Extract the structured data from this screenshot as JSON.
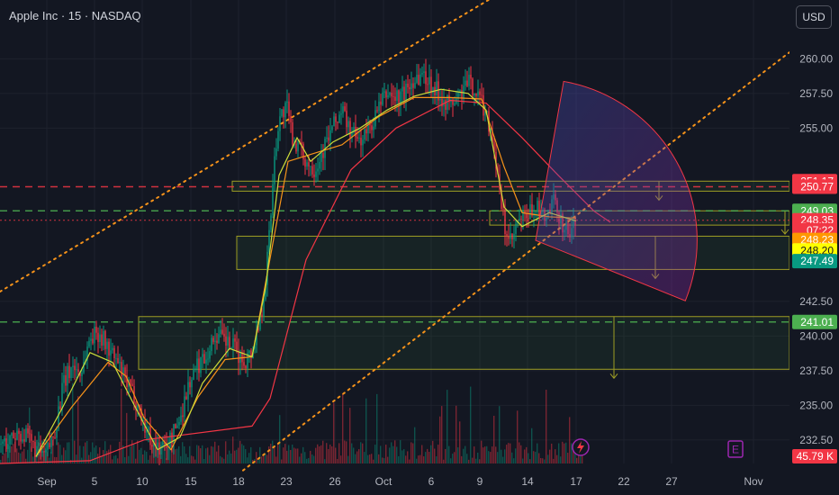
{
  "header": {
    "title": "Apple Inc · 15 · NASDAQ",
    "currency": "USD"
  },
  "chart_data": {
    "type": "candlestick",
    "ylim": [
      230.8,
      262.3
    ],
    "y_ticks": [
      "260.00",
      "257.50",
      "255.00",
      "242.50",
      "240.00",
      "237.50",
      "235.00",
      "232.50"
    ],
    "y_tick_values": [
      260.0,
      257.5,
      255.0,
      242.5,
      240.0,
      237.5,
      235.0,
      232.5
    ],
    "x_ticks": [
      "Sep",
      "5",
      "10",
      "15",
      "18",
      "23",
      "26",
      "Oct",
      "6",
      "9",
      "14",
      "17",
      "22",
      "27",
      "Nov"
    ],
    "price_path": [
      [
        0,
        232.2
      ],
      [
        10,
        232.4
      ],
      [
        20,
        233.1
      ],
      [
        30,
        232.6
      ],
      [
        40,
        231.8
      ],
      [
        50,
        231.3
      ],
      [
        60,
        232.9
      ],
      [
        70,
        236.4
      ],
      [
        80,
        237.9
      ],
      [
        90,
        237.3
      ],
      [
        100,
        239.9
      ],
      [
        110,
        240.3
      ],
      [
        120,
        239.1
      ],
      [
        130,
        238.1
      ],
      [
        140,
        236.6
      ],
      [
        150,
        235.6
      ],
      [
        160,
        233.6
      ],
      [
        170,
        232.3
      ],
      [
        180,
        231.8
      ],
      [
        190,
        232.6
      ],
      [
        200,
        234.1
      ],
      [
        210,
        236.6
      ],
      [
        220,
        237.9
      ],
      [
        230,
        238.8
      ],
      [
        240,
        240.1
      ],
      [
        250,
        239.6
      ],
      [
        260,
        239.1
      ],
      [
        270,
        238.1
      ],
      [
        280,
        238.9
      ],
      [
        290,
        241.6
      ],
      [
        295,
        244.1
      ],
      [
        300,
        248.1
      ],
      [
        305,
        253.1
      ],
      [
        310,
        255.6
      ],
      [
        318,
        256.6
      ],
      [
        325,
        254.3
      ],
      [
        332,
        253.6
      ],
      [
        340,
        252.6
      ],
      [
        350,
        252.1
      ],
      [
        360,
        253.6
      ],
      [
        370,
        255.1
      ],
      [
        380,
        256.3
      ],
      [
        390,
        254.6
      ],
      [
        400,
        254.1
      ],
      [
        410,
        254.9
      ],
      [
        420,
        256.3
      ],
      [
        430,
        257.6
      ],
      [
        440,
        257.1
      ],
      [
        450,
        257.6
      ],
      [
        460,
        258.6
      ],
      [
        470,
        258.9
      ],
      [
        480,
        258.1
      ],
      [
        490,
        257.3
      ],
      [
        500,
        256.6
      ],
      [
        510,
        257.3
      ],
      [
        520,
        258.3
      ],
      [
        530,
        257.6
      ],
      [
        540,
        256.1
      ],
      [
        548,
        254.1
      ],
      [
        555,
        250.1
      ],
      [
        562,
        247.4
      ],
      [
        568,
        246.6
      ],
      [
        575,
        248.1
      ],
      [
        585,
        248.6
      ],
      [
        595,
        249.4
      ],
      [
        605,
        248.3
      ],
      [
        615,
        249.6
      ],
      [
        625,
        248.1
      ],
      [
        633,
        247.4
      ],
      [
        640,
        248.4
      ]
    ],
    "moving_averages": [
      {
        "name": "",
        "color": "#f23645",
        "points": [
          [
            0,
            230.8
          ],
          [
            100,
            231.0
          ],
          [
            160,
            232.5
          ],
          [
            280,
            233.5
          ],
          [
            300,
            235.5
          ],
          [
            340,
            245.5
          ],
          [
            390,
            252.0
          ],
          [
            440,
            255.0
          ],
          [
            500,
            257.0
          ],
          [
            540,
            256.8
          ],
          [
            580,
            254.3
          ],
          [
            620,
            251.6
          ],
          [
            660,
            249.0
          ],
          [
            678,
            248.2
          ]
        ]
      },
      {
        "name": "",
        "color": "#f7931a",
        "points": [
          [
            40,
            231.3
          ],
          [
            80,
            234.9
          ],
          [
            120,
            238.1
          ],
          [
            140,
            237.1
          ],
          [
            160,
            234.1
          ],
          [
            190,
            231.8
          ],
          [
            220,
            235.6
          ],
          [
            250,
            238.3
          ],
          [
            280,
            238.5
          ],
          [
            300,
            245.6
          ],
          [
            320,
            252.6
          ],
          [
            345,
            253.1
          ],
          [
            380,
            253.8
          ],
          [
            420,
            255.8
          ],
          [
            460,
            257.2
          ],
          [
            500,
            257.2
          ],
          [
            535,
            257.1
          ],
          [
            560,
            252.2
          ],
          [
            580,
            248.9
          ],
          [
            610,
            248.6
          ],
          [
            640,
            248.5
          ]
        ]
      },
      {
        "name": "",
        "color": "#cddc39",
        "points": [
          [
            40,
            231.3
          ],
          [
            70,
            234.9
          ],
          [
            100,
            238.8
          ],
          [
            125,
            238.1
          ],
          [
            150,
            234.9
          ],
          [
            175,
            231.8
          ],
          [
            200,
            232.7
          ],
          [
            225,
            236.6
          ],
          [
            255,
            239.1
          ],
          [
            280,
            238.5
          ],
          [
            295,
            243.5
          ],
          [
            310,
            251.6
          ],
          [
            330,
            254.3
          ],
          [
            345,
            252.6
          ],
          [
            370,
            254.0
          ],
          [
            400,
            255.0
          ],
          [
            430,
            256.3
          ],
          [
            460,
            257.3
          ],
          [
            490,
            257.8
          ],
          [
            520,
            257.5
          ],
          [
            540,
            256.3
          ],
          [
            560,
            249.3
          ],
          [
            580,
            247.9
          ],
          [
            610,
            248.9
          ],
          [
            640,
            248.3
          ]
        ]
      }
    ],
    "trend_channel": {
      "color": "#f7931a",
      "lines": [
        {
          "from": [
            0,
            243.2
          ],
          "to": [
            575,
            265.5
          ]
        },
        {
          "from": [
            270,
            230.3
          ],
          "to": [
            932,
            263.2
          ]
        }
      ]
    },
    "horizontal_lines": [
      {
        "price": 250.77,
        "color": "#f23645",
        "style": "dashed"
      },
      {
        "price": 249.03,
        "color": "#4caf50",
        "style": "dashed"
      },
      {
        "price": 241.01,
        "color": "#4caf50",
        "style": "dashed"
      },
      {
        "price": 248.35,
        "color": "#f23645",
        "style": "dotted"
      }
    ],
    "zones": [
      {
        "x_start": 258,
        "x_end": 877,
        "top": 251.17,
        "bottom": 250.45,
        "arrow_x": 732
      },
      {
        "x_start": 544,
        "x_end": 877,
        "top": 249.03,
        "bottom": 248.0,
        "arrow_x": 872
      },
      {
        "x_start": 263,
        "x_end": 877,
        "top": 247.2,
        "bottom": 244.8,
        "arrow_x": 728
      },
      {
        "x_start": 154,
        "x_end": 877,
        "top": 241.4,
        "bottom": 237.6,
        "arrow_x": 682
      }
    ],
    "fan": {
      "center": [
        595,
        246.9
      ],
      "radius_price": 278,
      "start_deg": -80,
      "end_deg": 22,
      "color": "#f23645"
    },
    "price_labels": [
      {
        "text": "251.17",
        "price": 251.17,
        "bg": "#f23645",
        "fg": "#ffffff"
      },
      {
        "text": "250.77",
        "price": 250.77,
        "bg": "#f23645",
        "fg": "#ffffff"
      },
      {
        "text": "249.03",
        "price": 249.03,
        "bg": "#4caf50",
        "fg": "#ffffff"
      },
      {
        "text": "248.35",
        "price": 248.35,
        "bg": "#f23645",
        "fg": "#ffffff"
      },
      {
        "text": "07:22",
        "price": 247.63,
        "bg": "#f23645",
        "fg": "#ffffff"
      },
      {
        "text": "248.23",
        "price": 246.93,
        "bg": "#ff9800",
        "fg": "#ffffff"
      },
      {
        "text": "248.20",
        "price": 246.17,
        "bg": "#ffff00",
        "fg": "#131722"
      },
      {
        "text": "247.49",
        "price": 245.4,
        "bg": "#089981",
        "fg": "#ffffff"
      },
      {
        "text": "241.01",
        "price": 241.01,
        "bg": "#4caf50",
        "fg": "#ffffff"
      },
      {
        "text": "45.79 K",
        "price": 230.8,
        "bg": "#f23645",
        "fg": "#ffffff"
      }
    ],
    "markers": [
      {
        "text": "E",
        "x": 817,
        "color": "#9c27b0"
      }
    ]
  }
}
